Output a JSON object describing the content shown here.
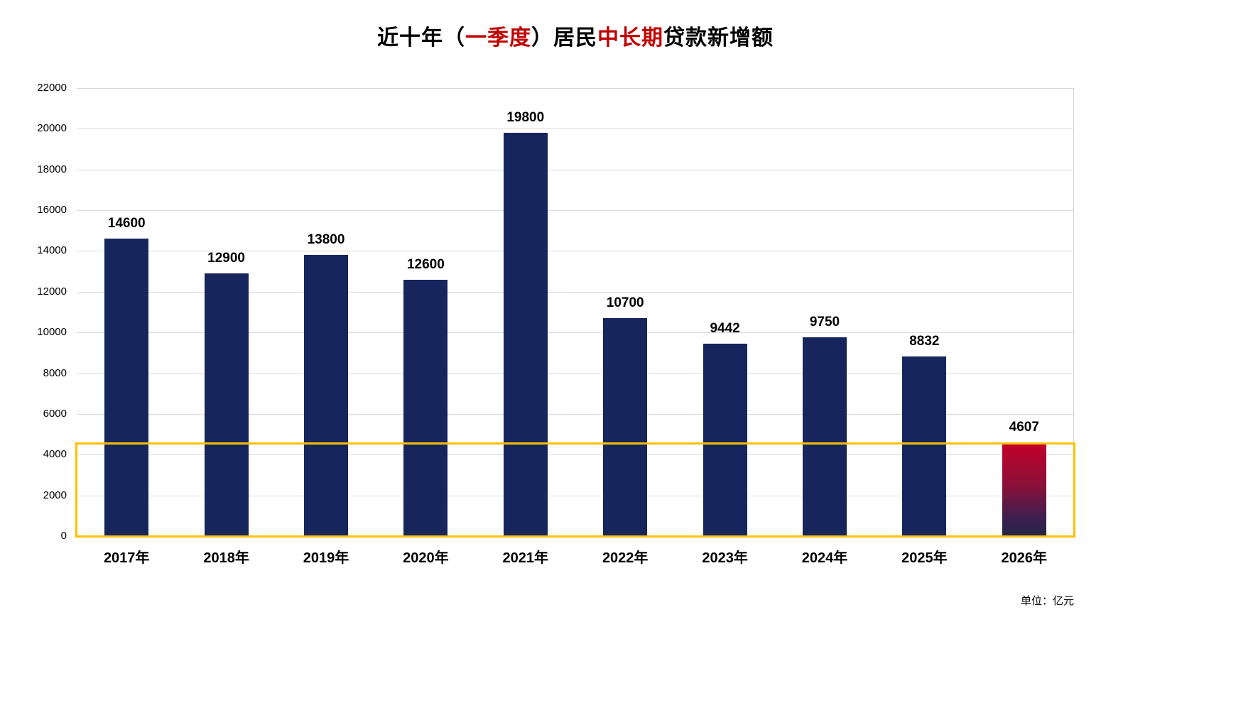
{
  "title": {
    "segments": [
      {
        "text": "近十年（",
        "color": "#000000"
      },
      {
        "text": "一季度",
        "color": "#c00000"
      },
      {
        "text": "）居民",
        "color": "#000000"
      },
      {
        "text": "中长期",
        "color": "#c00000"
      },
      {
        "text": "贷款新增额",
        "color": "#000000"
      }
    ]
  },
  "unit_label": "单位：亿元",
  "chart_data": {
    "type": "bar",
    "title": "近十年（一季度）居民中长期贷款新增额",
    "categories": [
      "2017年",
      "2018年",
      "2019年",
      "2020年",
      "2021年",
      "2022年",
      "2023年",
      "2024年",
      "2025年",
      "2026年"
    ],
    "values": [
      14600,
      12900,
      13800,
      12600,
      19800,
      10700,
      9442,
      9750,
      8832,
      4607
    ],
    "xlabel": "",
    "ylabel": "",
    "ylim": [
      0,
      22000
    ],
    "ytick_step": 2000,
    "grid": true,
    "legend": "none",
    "bar_color": "#16255c",
    "last_bar_gradient": [
      "#c4002a",
      "#8c1038",
      "#3a2050",
      "#232448"
    ],
    "value_label_color": "#000000",
    "highlight_box": {
      "color": "#ffc000",
      "from_value": 0,
      "to_value": 4607
    }
  }
}
